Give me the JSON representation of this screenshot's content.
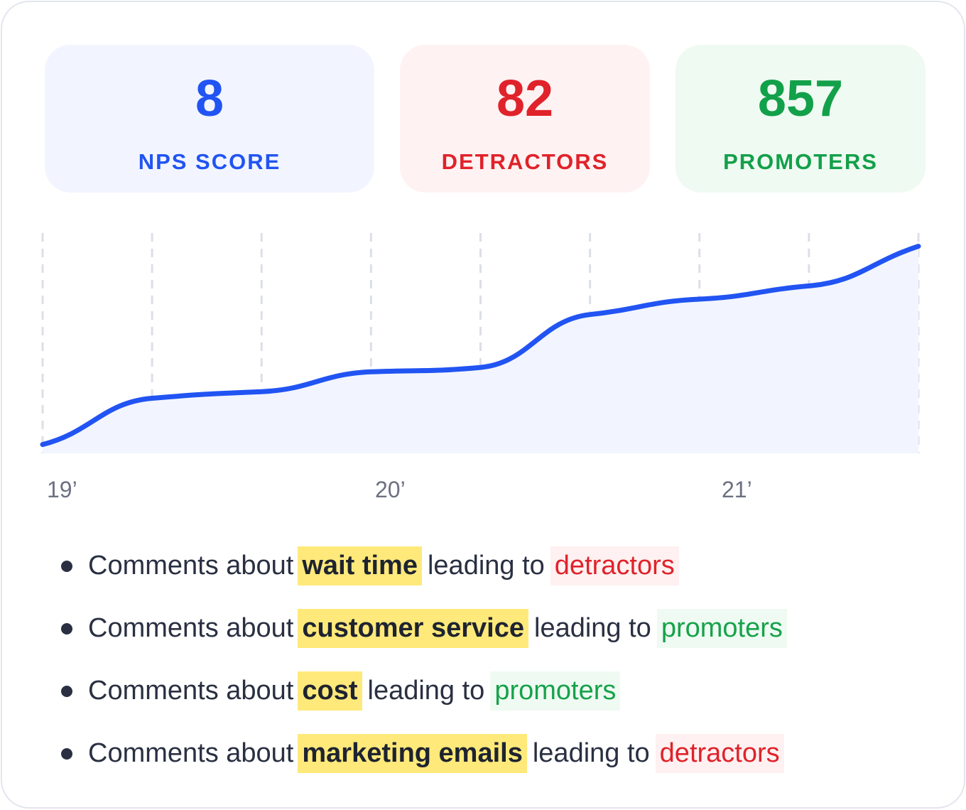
{
  "stats": {
    "nps": {
      "value": "8",
      "label": "NPS SCORE",
      "color": "#2154f2"
    },
    "detractors": {
      "value": "82",
      "label": "DETRACTORS",
      "color": "#e0222a"
    },
    "promoters": {
      "value": "857",
      "label": "PROMOTERS",
      "color": "#13a04a"
    }
  },
  "chart_data": {
    "type": "area",
    "x_tick_labels": [
      "19’",
      "20’",
      "21’"
    ],
    "points": [
      {
        "x": 0,
        "y": 4
      },
      {
        "x": 1,
        "y": 25
      },
      {
        "x": 2,
        "y": 28
      },
      {
        "x": 3,
        "y": 37
      },
      {
        "x": 4,
        "y": 39
      },
      {
        "x": 5,
        "y": 63
      },
      {
        "x": 6,
        "y": 70
      },
      {
        "x": 7,
        "y": 76
      },
      {
        "x": 8,
        "y": 94
      }
    ],
    "ylim": [
      0,
      100
    ],
    "line_color": "#2154f2",
    "fill_color": "#f2f5ff",
    "grid": "vertical-dashed"
  },
  "comments": [
    {
      "prefix": "Comments about",
      "keyword": "wait time",
      "middle": "leading to",
      "outcome": "detractors",
      "type": "det"
    },
    {
      "prefix": "Comments about",
      "keyword": "customer service",
      "middle": "leading to",
      "outcome": "promoters",
      "type": "pro"
    },
    {
      "prefix": "Comments about",
      "keyword": "cost",
      "middle": "leading to",
      "outcome": "promoters",
      "type": "pro"
    },
    {
      "prefix": "Comments about",
      "keyword": "marketing emails",
      "middle": "leading to",
      "outcome": "detractors",
      "type": "det"
    }
  ]
}
